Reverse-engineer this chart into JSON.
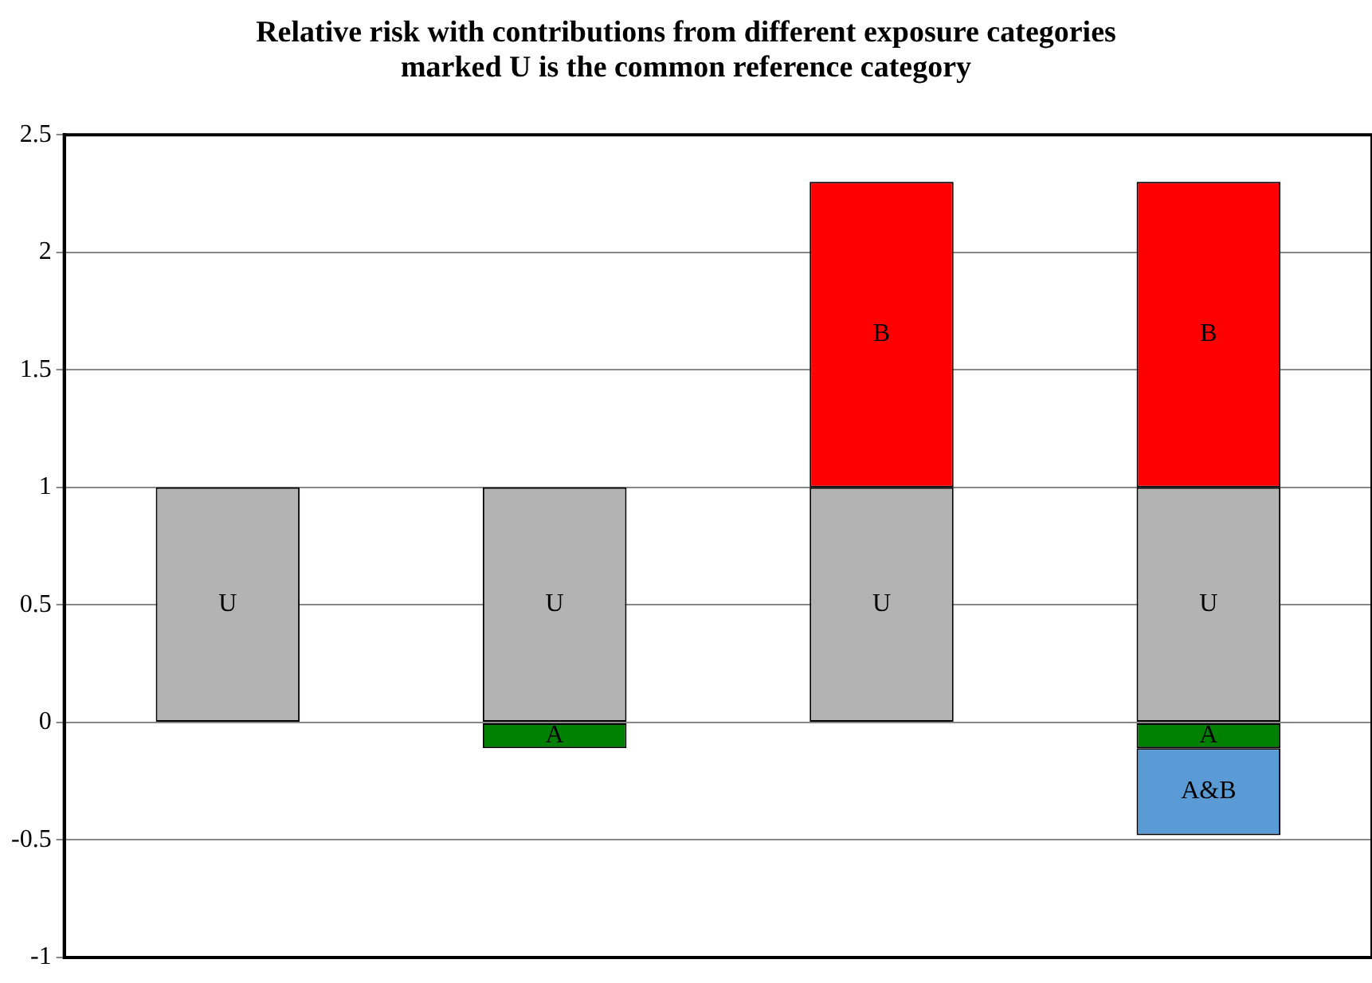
{
  "chart_data": {
    "type": "bar",
    "title": "Relative risk with contributions from different exposure categories\nmarked U is the common reference category",
    "categories": [
      null,
      null,
      null,
      null
    ],
    "stacked": true,
    "series": [
      {
        "name": "U",
        "color": "#b3b3b3",
        "values": [
          1,
          1,
          1,
          1
        ]
      },
      {
        "name": "B",
        "color": "#ff0000",
        "values": [
          null,
          null,
          1.3,
          1.3
        ]
      },
      {
        "name": "A",
        "color": "#008000",
        "values": [
          null,
          -0.11,
          null,
          -0.11
        ]
      },
      {
        "name": "A&B",
        "color": "#5b9bd5",
        "values": [
          null,
          null,
          null,
          -0.37
        ]
      }
    ],
    "ylim": [
      -1,
      2.5
    ],
    "yticks": [
      -1,
      -0.5,
      0,
      0.5,
      1,
      1.5,
      2,
      2.5
    ],
    "grid": "y",
    "legend": false,
    "tick_labels": "y"
  }
}
